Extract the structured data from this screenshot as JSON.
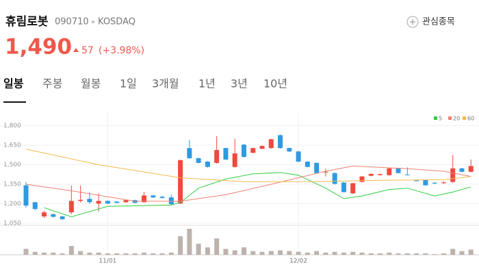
{
  "header": {
    "name": "휴림로봇",
    "code": "090710",
    "market": "KOSDAQ",
    "watch": "관심종목",
    "price": "1,490",
    "change": "57",
    "change_pct": "(+3.98%)"
  },
  "tabs": [
    "일봉",
    "주봉",
    "월봉",
    "1일",
    "3개월",
    "1년",
    "3년",
    "10년"
  ],
  "chart_data": {
    "type": "candlestick",
    "categories": [
      null,
      null,
      null,
      null,
      null,
      null,
      null,
      null,
      null,
      "11/01",
      null,
      null,
      null,
      null,
      null,
      null,
      null,
      null,
      null,
      null,
      null,
      null,
      null,
      null,
      null,
      null,
      null,
      null,
      null,
      null,
      "12/02",
      null,
      null,
      null,
      null,
      null,
      null,
      null,
      null,
      null,
      null,
      null,
      null,
      null,
      null,
      null,
      null,
      null,
      null,
      null
    ],
    "open": [
      1342,
      1212,
      1103,
      1120,
      1103,
      1134,
      1222,
      1238,
      1202,
      1222,
      1217,
      1212,
      1228,
      1212,
      1264,
      1254,
      1249,
      1202,
      1628,
      1550,
      1524,
      1514,
      1628,
      1483,
      1654,
      1592,
      1623,
      1628,
      1727,
      1628,
      1602,
      1524,
      1514,
      1441,
      1436,
      1363,
      1280,
      1368,
      1415,
      1420,
      1420,
      1472,
      1425,
      1380,
      1384,
      1362,
      1358,
      1368,
      1472,
      1446
    ],
    "high": [
      1368,
      1215,
      1145,
      1125,
      1108,
      1340,
      1340,
      1290,
      1280,
      1226,
      1220,
      1232,
      1232,
      1290,
      1268,
      1262,
      1270,
      1540,
      1690,
      1555,
      1530,
      1720,
      1632,
      1700,
      1660,
      1632,
      1648,
      1700,
      1732,
      1632,
      1606,
      1528,
      1518,
      1470,
      1440,
      1368,
      1362,
      1412,
      1432,
      1432,
      1476,
      1476,
      1480,
      1384,
      1386,
      1366,
      1374,
      1575,
      1476,
      1540
    ],
    "low": [
      1170,
      1150,
      1090,
      1095,
      1075,
      1120,
      1210,
      1200,
      1140,
      1198,
      1204,
      1208,
      1203,
      1208,
      1245,
      1245,
      1190,
      1198,
      1545,
      1510,
      1478,
      1508,
      1535,
      1478,
      1555,
      1588,
      1619,
      1624,
      1622,
      1598,
      1520,
      1480,
      1432,
      1410,
      1348,
      1286,
      1276,
      1364,
      1411,
      1418,
      1416,
      1432,
      1418,
      1374,
      1338,
      1350,
      1354,
      1362,
      1440,
      1442
    ],
    "close": [
      1186,
      1160,
      1134,
      1100,
      1082,
      1222,
      1230,
      1212,
      1222,
      1202,
      1207,
      1228,
      1207,
      1264,
      1249,
      1244,
      1197,
      1535,
      1550,
      1514,
      1483,
      1613,
      1540,
      1587,
      1560,
      1628,
      1644,
      1696,
      1628,
      1602,
      1524,
      1483,
      1436,
      1446,
      1353,
      1290,
      1358,
      1410,
      1430,
      1428,
      1472,
      1436,
      1420,
      1374,
      1342,
      1356,
      1364,
      1472,
      1446,
      1490
    ],
    "volume": [
      8,
      4,
      3,
      3,
      2,
      12,
      5,
      3,
      3,
      2,
      2,
      2,
      2,
      3,
      2,
      2,
      3,
      25,
      35,
      15,
      10,
      22,
      8,
      6,
      10,
      5,
      4,
      5,
      6,
      5,
      4,
      3,
      5,
      3,
      4,
      3,
      4,
      3,
      2,
      2,
      3,
      2,
      2,
      2,
      2,
      1,
      2,
      8,
      5,
      7
    ],
    "up_color": "#f0493e",
    "down_color": "#2f9ae0",
    "volume_color": "#bdb2ac",
    "series": [
      {
        "name": "5",
        "color": "#2ecc40",
        "x": [
          2,
          5,
          9,
          16,
          17,
          19,
          22,
          25,
          28,
          30,
          33,
          35,
          37,
          40,
          42,
          45,
          47,
          49
        ],
        "values": [
          1170,
          1100,
          1180,
          1190,
          1210,
          1320,
          1390,
          1430,
          1440,
          1420,
          1320,
          1240,
          1260,
          1310,
          1320,
          1260,
          1290,
          1330
        ]
      },
      {
        "name": "20",
        "color": "#f08070",
        "x": [
          0,
          5,
          12,
          17,
          22,
          27,
          33,
          36,
          42,
          46,
          49
        ],
        "values": [
          1350,
          1300,
          1220,
          1220,
          1270,
          1350,
          1450,
          1490,
          1470,
          1450,
          1410
        ]
      },
      {
        "name": "60",
        "color": "#f5b94a",
        "x": [
          0,
          8,
          17,
          24,
          31,
          39,
          46,
          49
        ],
        "values": [
          1620,
          1500,
          1400,
          1370,
          1370,
          1380,
          1385,
          1410
        ]
      }
    ],
    "ylim": [
      1050,
      1900
    ],
    "yticks": [
      {
        "value": 1050,
        "label": "1,050"
      },
      {
        "value": 1200,
        "label": "1,200"
      },
      {
        "value": 1350,
        "label": "1,350"
      },
      {
        "value": 1500,
        "label": "1,500"
      },
      {
        "value": 1650,
        "label": "1,650"
      },
      {
        "value": 1800,
        "label": "1,800"
      }
    ]
  }
}
